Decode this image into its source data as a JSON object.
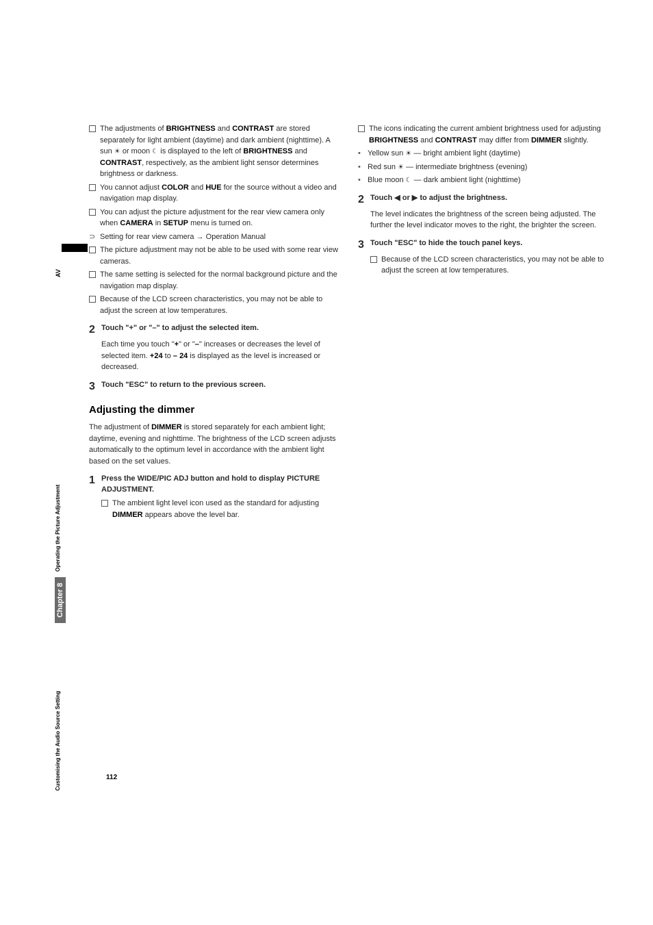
{
  "sidebar": {
    "av": "AV",
    "operating": "Operating the Picture Adjustment",
    "chapter": "Chapter 8",
    "customising": "Customising the Audio Source Setting"
  },
  "col1": {
    "b1_pre": "The adjustments of ",
    "b1_brightness": "BRIGHTNESS",
    "b1_and": " and ",
    "b1_contrast": "CONTRAST",
    "b1_mid": " are stored separately for light ambient (daytime) and dark ambient (nighttime). A sun ",
    "b1_mid2": " or moon ",
    "b1_mid3": " is displayed to the left of ",
    "b1_brightness2": "BRIGHTNESS",
    "b1_and2": " and ",
    "b1_contrast2": "CONTRAST",
    "b1_end": ", respectively, as the ambient light sensor determines brightness or darkness.",
    "b2_pre": "You cannot adjust ",
    "b2_color": "COLOR",
    "b2_and": " and ",
    "b2_hue": "HUE",
    "b2_end": " for the source without a video and navigation map display.",
    "b3_pre": "You can adjust the picture adjustment for the rear view camera only when ",
    "b3_camera": "CAMERA",
    "b3_in": " in ",
    "b3_setup": "SETUP",
    "b3_end": " menu is turned on.",
    "b4": "Setting for rear view camera → Operation Manual",
    "b5": "The picture adjustment may not be able to be used with some rear view cameras.",
    "b6": "The same setting is selected for the normal background picture and the navigation map display.",
    "b7": "Because of the LCD screen characteristics, you may not be able to adjust the screen at low temperatures.",
    "step2_title": "Touch \"+\" or \"–\" to adjust the selected item.",
    "step2_body_pre": "Each time you touch \"",
    "step2_plus": "+",
    "step2_body_mid1": "\" or \"",
    "step2_minus": "–",
    "step2_body_mid2": "\" increases or decreases the level of selected item. ",
    "step2_p24": "+24",
    "step2_to": " to ",
    "step2_m24": "– 24",
    "step2_body_end": " is displayed as the level is increased or decreased.",
    "step3_title": "Touch \"ESC\" to return to the previous screen.",
    "sec_title": "Adjusting the dimmer",
    "sec_para_pre": "The adjustment of ",
    "sec_dimmer": "DIMMER",
    "sec_para_end": " is stored separately for each ambient light; daytime, evening and nighttime. The brightness of the LCD screen adjusts automatically to the optimum level in accordance with the ambient light based on the set values.",
    "step1_title_pre": "Press the ",
    "step1_wide": "WIDE/PIC ADJ",
    "step1_title_mid": " button and hold to display ",
    "step1_picadj": "PICTURE ADJUSTMENT",
    "step1_title_end": ".",
    "step1_b1_pre": "The ambient light level icon used as the standard for adjusting ",
    "step1_b1_dimmer": "DIMMER",
    "step1_b1_end": " appears above the level bar."
  },
  "col2": {
    "b1_pre": "The icons indicating the current ambient brightness used for adjusting ",
    "b1_brightness": "BRIGHTNESS",
    "b1_and": " and ",
    "b1_contrast": "CONTRAST",
    "b1_may": " may differ from ",
    "b1_dimmer": "DIMMER",
    "b1_end": " slightly.",
    "d1_pre": "Yellow sun ",
    "d1_end": " — bright ambient light (daytime)",
    "d2_pre": "Red sun ",
    "d2_end": " — intermediate brightness (evening)",
    "d3_pre": "Blue moon ",
    "d3_end": " — dark ambient light (nighttime)",
    "step2_title": "Touch ◀ or ▶ to adjust the brightness.",
    "step2_body": "The level indicates the brightness of the screen being adjusted. The further the level indicator moves to the right, the brighter the screen.",
    "step3_title": "Touch \"ESC\" to hide the touch panel keys.",
    "step3_b1": "Because of the LCD screen characteristics, you may not be able to adjust the screen at low temperatures."
  },
  "nums": {
    "two": "2",
    "three": "3",
    "one": "1"
  },
  "pagenum": "112"
}
